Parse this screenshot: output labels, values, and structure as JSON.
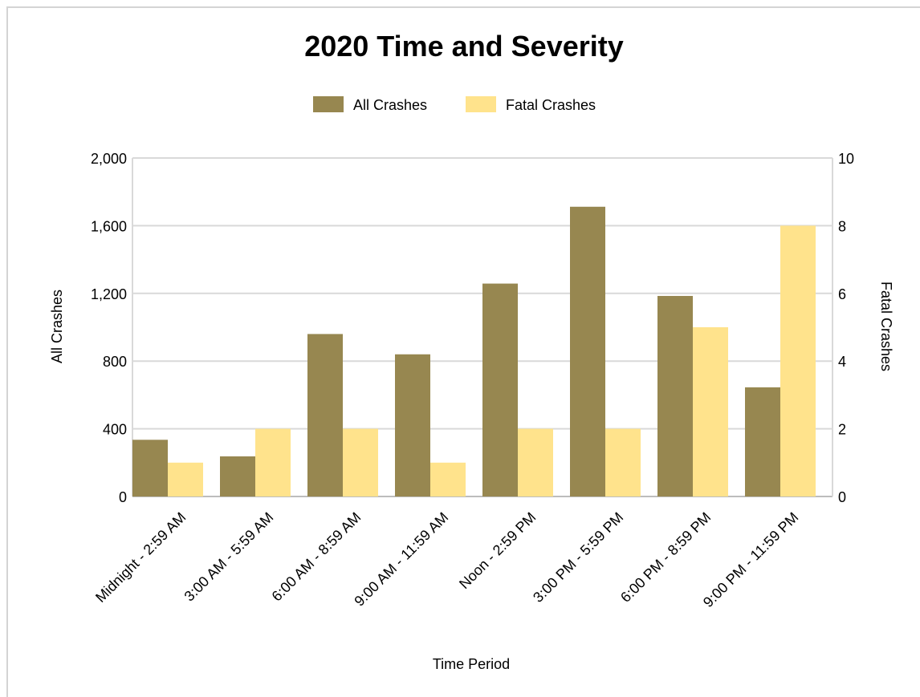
{
  "chart_data": {
    "type": "bar",
    "title": "2020 Time and Severity",
    "xlabel": "Time Period",
    "ylabel": "All Crashes",
    "y2label": "Fatal Crashes",
    "categories": [
      "Midnight - 2:59 AM",
      "3:00 AM - 5:59 AM",
      "6:00 AM - 8:59 AM",
      "9:00 AM - 11:59 AM",
      "Noon - 2:59 PM",
      "3:00 PM - 5:59 PM",
      "6:00 PM - 8:59 PM",
      "9:00 PM - 11:59 PM"
    ],
    "series": [
      {
        "name": "All Crashes",
        "axis": "left",
        "color": "#978750",
        "values": [
          335,
          237,
          960,
          840,
          1258,
          1712,
          1185,
          645
        ]
      },
      {
        "name": "Fatal Crashes",
        "axis": "right",
        "color": "#ffe38c",
        "values": [
          1,
          2,
          2,
          1,
          2,
          2,
          5,
          8
        ]
      }
    ],
    "ylim": [
      0,
      2000
    ],
    "y2lim": [
      0,
      10
    ],
    "yticks": [
      "0",
      "400",
      "800",
      "1,200",
      "1,600",
      "2,000"
    ],
    "y2ticks": [
      "0",
      "2",
      "4",
      "6",
      "8",
      "10"
    ],
    "grid": true,
    "legend_position": "top"
  }
}
